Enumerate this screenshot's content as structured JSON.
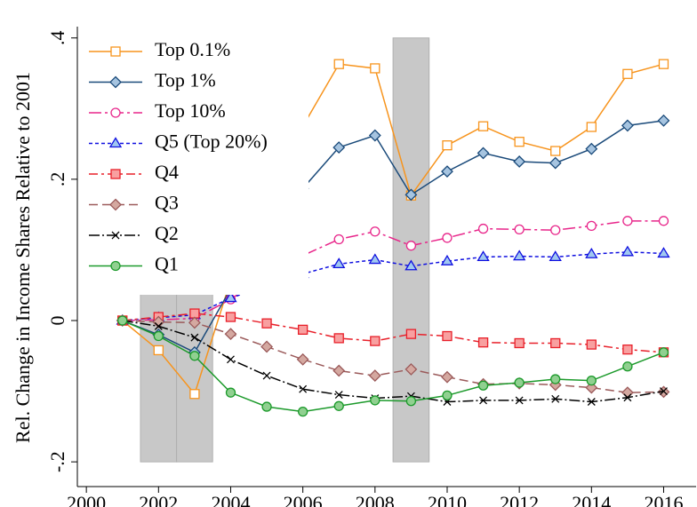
{
  "chart_data": {
    "type": "line",
    "ylabel": "Rel. Change in Income Shares Relative to 2001",
    "x": [
      2001,
      2002,
      2003,
      2004,
      2005,
      2006,
      2007,
      2008,
      2009,
      2010,
      2011,
      2012,
      2013,
      2014,
      2015,
      2016
    ],
    "xlim": [
      1999.75,
      2016.9
    ],
    "xticks": [
      2000,
      2002,
      2004,
      2006,
      2008,
      2010,
      2012,
      2014,
      2016
    ],
    "ylim": [
      -0.235,
      0.416
    ],
    "yticks": [
      {
        "value": 0.4,
        "label": ".4"
      },
      {
        "value": 0.2,
        "label": ".2"
      },
      0,
      {
        "value": -0.2,
        "label": "-.2"
      }
    ],
    "shaded_regions": [
      [
        2001.5,
        2002.5
      ],
      [
        2002.5,
        2003.5
      ],
      [
        2008.5,
        2009.5
      ]
    ],
    "legend": "upper left",
    "series": [
      {
        "name": "Top 0.1%",
        "color": "#f7941d",
        "fill": "#ffffff",
        "marker": "square",
        "dash": "none",
        "values": [
          0,
          -0.042,
          -0.104,
          0.057,
          0.192,
          0.275,
          0.363,
          0.357,
          0.177,
          0.248,
          0.275,
          0.253,
          0.24,
          0.274,
          0.349,
          0.363
        ]
      },
      {
        "name": "Top 1%",
        "color": "#1a4a7a",
        "fill": "#a6c4e0",
        "marker": "diamond",
        "dash": "none",
        "values": [
          0,
          -0.02,
          -0.045,
          0.045,
          0.128,
          0.187,
          0.245,
          0.262,
          0.178,
          0.211,
          0.237,
          0.225,
          0.223,
          0.243,
          0.276,
          0.283
        ]
      },
      {
        "name": "Top 10%",
        "color": "#e8258a",
        "fill": "#ffffff",
        "marker": "circle",
        "dash": "14 4 3 4",
        "values": [
          0,
          0.001,
          0.003,
          0.03,
          0.066,
          0.092,
          0.115,
          0.126,
          0.106,
          0.117,
          0.13,
          0.129,
          0.128,
          0.134,
          0.141,
          0.141
        ]
      },
      {
        "name": "Q5 (Top 20%)",
        "color": "#1010e0",
        "fill": "#a0c8f0",
        "marker": "triangle",
        "dash": "4 3",
        "values": [
          0,
          0.004,
          0.008,
          0.032,
          0.049,
          0.066,
          0.08,
          0.086,
          0.077,
          0.084,
          0.09,
          0.091,
          0.09,
          0.094,
          0.097,
          0.095
        ]
      },
      {
        "name": "Q4",
        "color": "#e8202a",
        "fill": "#f8a0a0",
        "marker": "square",
        "dash": "10 4 3 4",
        "values": [
          0,
          0.005,
          0.01,
          0.005,
          -0.004,
          -0.013,
          -0.025,
          -0.029,
          -0.019,
          -0.022,
          -0.031,
          -0.032,
          -0.032,
          -0.034,
          -0.041,
          -0.045
        ]
      },
      {
        "name": "Q3",
        "color": "#9b5a5a",
        "fill": "#d4a8a0",
        "marker": "diamond",
        "dash": "10 5",
        "values": [
          0,
          -0.002,
          -0.003,
          -0.019,
          -0.037,
          -0.055,
          -0.071,
          -0.078,
          -0.069,
          -0.08,
          -0.09,
          -0.089,
          -0.091,
          -0.095,
          -0.102,
          -0.101
        ]
      },
      {
        "name": "Q2",
        "color": "#000000",
        "fill": "none",
        "marker": "x",
        "dash": "12 3 2 3",
        "values": [
          0,
          -0.008,
          -0.024,
          -0.055,
          -0.078,
          -0.097,
          -0.105,
          -0.11,
          -0.107,
          -0.115,
          -0.113,
          -0.113,
          -0.111,
          -0.115,
          -0.109,
          -0.1
        ]
      },
      {
        "name": "Q1",
        "color": "#1c9a2b",
        "fill": "#90d090",
        "marker": "circle",
        "dash": "none",
        "values": [
          0,
          -0.022,
          -0.05,
          -0.102,
          -0.122,
          -0.129,
          -0.121,
          -0.113,
          -0.114,
          -0.106,
          -0.092,
          -0.088,
          -0.083,
          -0.085,
          -0.065,
          -0.045
        ]
      }
    ]
  }
}
